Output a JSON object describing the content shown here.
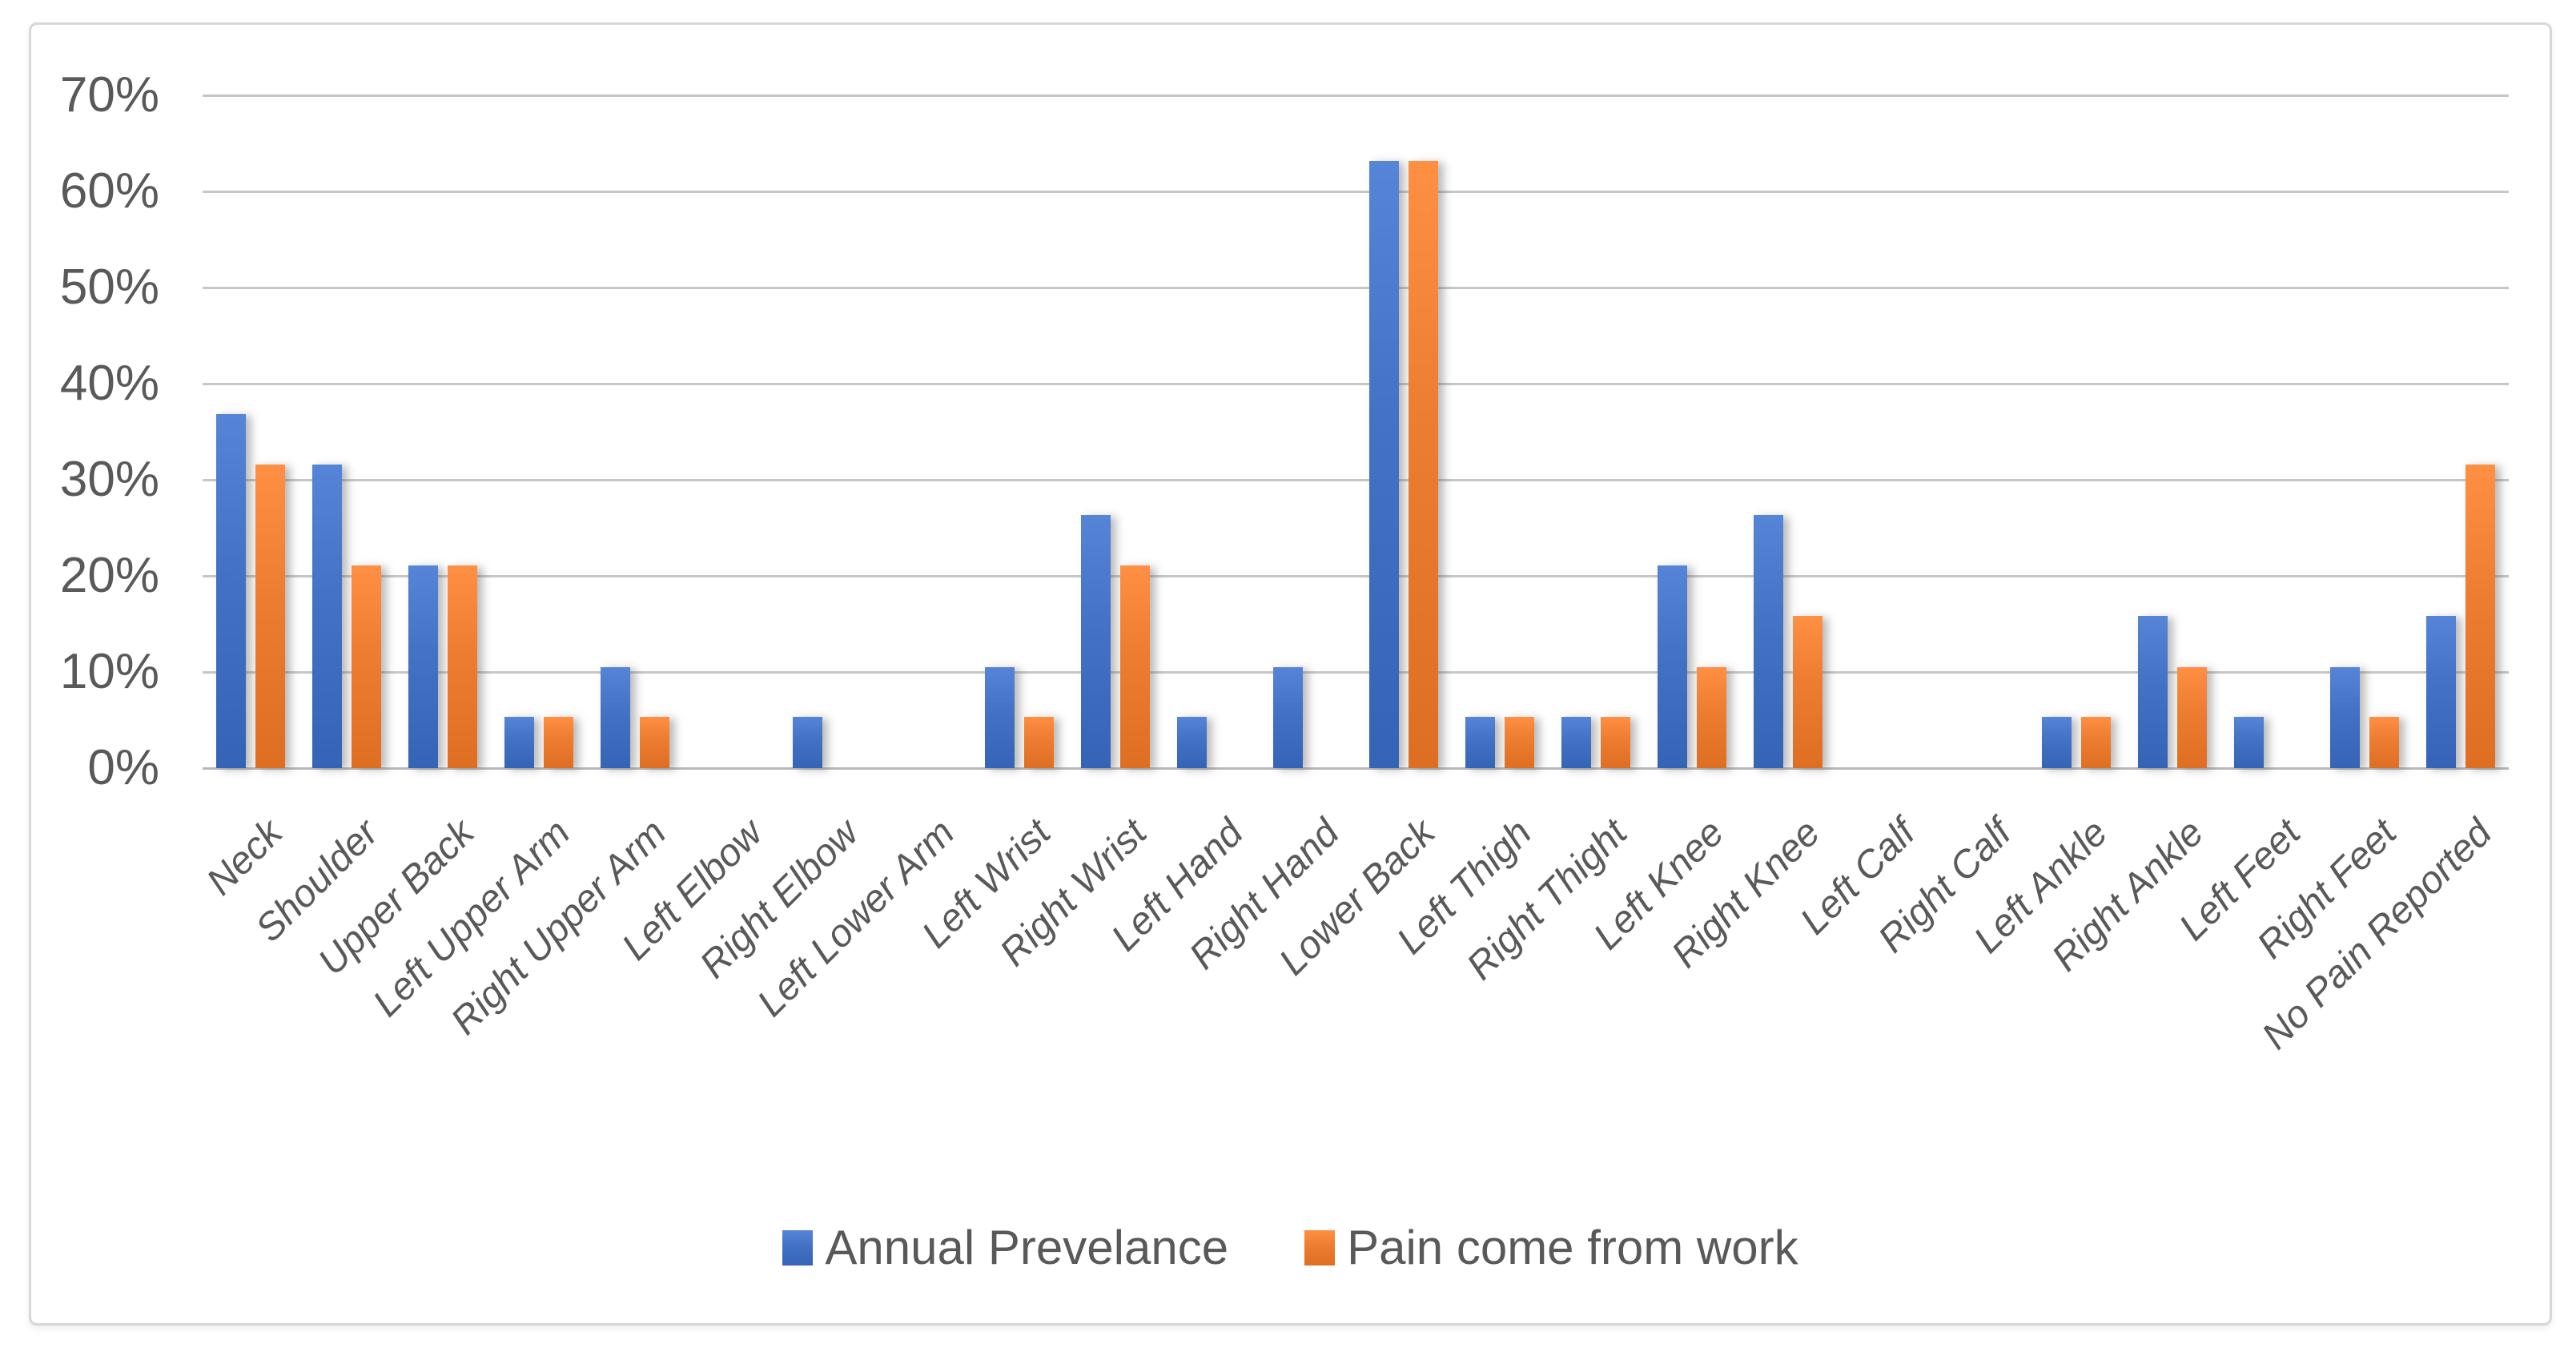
{
  "chart_data": {
    "type": "bar",
    "title": "",
    "categories": [
      "Neck",
      "Shoulder",
      "Upper Back",
      "Left Upper Arm",
      "Right Upper Arm",
      "Left Elbow",
      "Right Elbow",
      "Left Lower Arm",
      "Left Wrist",
      "Right Wrist",
      "Left Hand",
      "Right Hand",
      "Lower Back",
      "Left Thigh",
      "Right Thight",
      "Left Knee",
      "Right Knee",
      "Left Calf",
      "Right Calf",
      "Left Ankle",
      "Right Ankle",
      "Left Feet",
      "Right Feet",
      "No Pain Reported"
    ],
    "series": [
      {
        "name": "Annual Prevelance",
        "color": "#4472C4",
        "values": [
          36.8,
          31.6,
          21.1,
          5.3,
          10.5,
          0,
          5.3,
          0,
          10.5,
          26.3,
          5.3,
          10.5,
          63.2,
          5.3,
          5.3,
          21.1,
          26.3,
          0,
          0,
          5.3,
          15.8,
          5.3,
          10.5,
          15.8
        ]
      },
      {
        "name": "Pain come from work",
        "color": "#ED7D31",
        "values": [
          31.6,
          21.1,
          21.1,
          5.3,
          5.3,
          0,
          0,
          0,
          5.3,
          21.1,
          0,
          0,
          63.2,
          5.3,
          5.3,
          10.5,
          15.8,
          0,
          0,
          5.3,
          10.5,
          0,
          5.3,
          31.6
        ]
      }
    ],
    "xlabel": "",
    "ylabel": "",
    "ylim": [
      0,
      70
    ],
    "yticks": [
      0,
      10,
      20,
      30,
      40,
      50,
      60,
      70
    ],
    "ytick_labels": [
      "0%",
      "10%",
      "20%",
      "30%",
      "40%",
      "50%",
      "60%",
      "70%"
    ],
    "grid": true,
    "legend_position": "bottom",
    "colors": {
      "grid": "#c6c6c6",
      "axis_text": "#595959",
      "frame_border": "#d7d7d7",
      "background": "#ffffff"
    }
  }
}
